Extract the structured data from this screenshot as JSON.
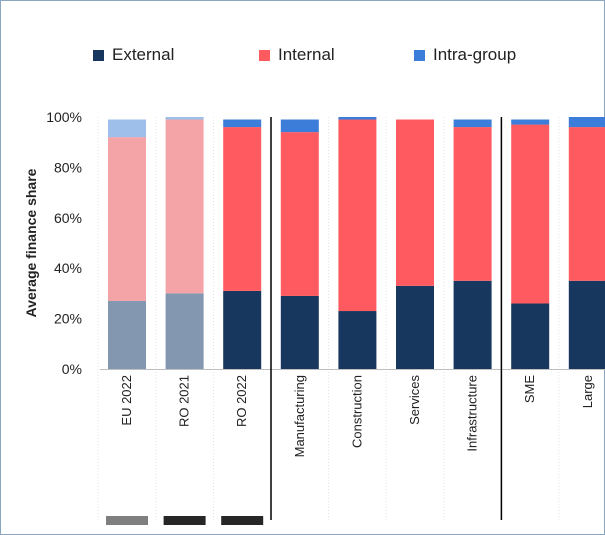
{
  "chart_data": {
    "type": "bar",
    "stacked": true,
    "ylabel": "Average finance  share",
    "ylim": [
      0,
      100
    ],
    "yticks": [
      "0%",
      "20%",
      "40%",
      "60%",
      "80%",
      "100%"
    ],
    "legend_position": "top",
    "categories": [
      "EU 2022",
      "RO 2021",
      "RO 2022",
      "Manufacturing",
      "Construction",
      "Services",
      "Infrastructure",
      "SME",
      "Large"
    ],
    "faded_categories": [
      "EU 2022",
      "RO 2021"
    ],
    "separators_after": [
      "RO 2022",
      "Infrastructure"
    ],
    "series": [
      {
        "name": "External",
        "color": "#17375e",
        "faded_color": "#8497b0",
        "values": [
          27,
          30,
          31,
          29,
          23,
          33,
          35,
          26,
          35
        ]
      },
      {
        "name": "Internal",
        "color": "#ff5a5f",
        "faded_color": "#f4a3a7",
        "values": [
          65,
          69,
          65,
          65,
          76,
          66,
          61,
          71,
          61
        ]
      },
      {
        "name": "Intra-group",
        "color": "#3c7dd9",
        "faded_color": "#9dbfe9",
        "values": [
          7,
          1,
          3,
          5,
          1,
          0,
          3,
          2,
          4
        ]
      }
    ],
    "bottom_markers": [
      {
        "category": "EU 2022",
        "color": "#7f7f7f"
      },
      {
        "category": "RO 2021",
        "color": "#262626"
      },
      {
        "category": "RO 2022",
        "color": "#262626"
      }
    ]
  }
}
